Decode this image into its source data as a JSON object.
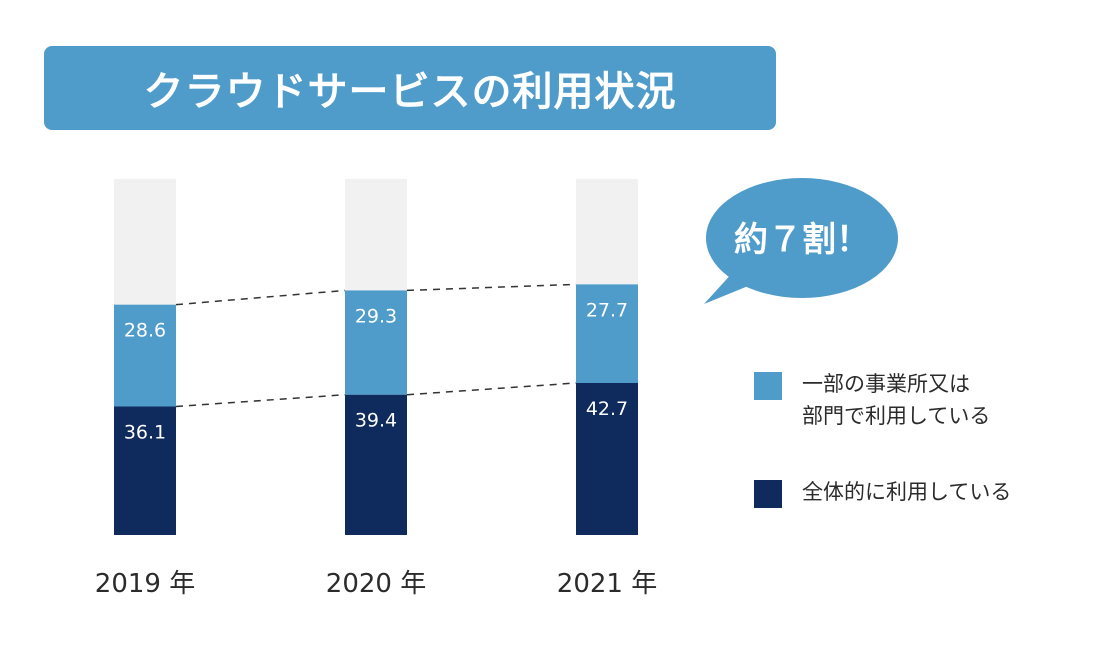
{
  "chart_data": {
    "type": "bar",
    "stacked": true,
    "title": "クラウドサービスの利用状況",
    "categories": [
      "2019 年",
      "2020 年",
      "2021 年"
    ],
    "series": [
      {
        "name": "全体的に利用している",
        "values": [
          36.1,
          39.4,
          42.7
        ],
        "color": "#0f2a5c"
      },
      {
        "name": "一部の事業所又は\n部門で利用している",
        "values": [
          28.6,
          29.3,
          27.7
        ],
        "color": "#4f9ccb"
      }
    ],
    "ylim": [
      0,
      100
    ],
    "background_color": "#f1f1f1",
    "connector_lines": "dashed",
    "callout": "約７割！",
    "legend_position": "right"
  }
}
